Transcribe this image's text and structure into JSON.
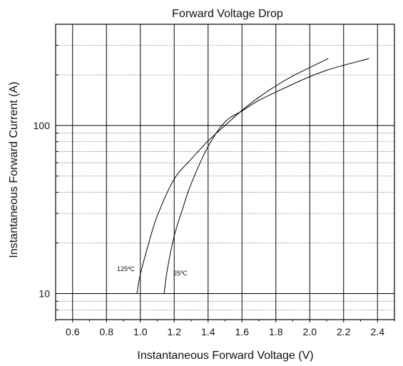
{
  "chart_data": {
    "type": "line",
    "title": "Forward Voltage Drop",
    "xlabel": "Instantaneous Forward Voltage (V)",
    "ylabel": "Instantaneous Forward Current (A)",
    "xlim": [
      0.5,
      2.5
    ],
    "ylim": [
      7,
      400
    ],
    "yscale": "log",
    "grid": true,
    "xticks": [
      0.6,
      0.8,
      1.0,
      1.2,
      1.4,
      1.6,
      1.8,
      2.0,
      2.2,
      2.4
    ],
    "xtick_labels": [
      "0.6",
      "0.8",
      "1.0",
      "1.2",
      "1.4",
      "1.6",
      "1.8",
      "2.0",
      "2.2",
      "2.4"
    ],
    "yticks": [
      10,
      100
    ],
    "ytick_labels": [
      "10",
      "100"
    ],
    "series": [
      {
        "name": "125ºC",
        "x": [
          0.98,
          1.0,
          1.05,
          1.1,
          1.2,
          1.3,
          1.4,
          1.5,
          1.6,
          1.7,
          1.8,
          1.9,
          2.0,
          2.11
        ],
        "y": [
          10,
          13,
          20,
          29,
          48,
          63,
          81,
          100,
          123,
          147,
          172,
          197,
          221,
          250
        ]
      },
      {
        "name": "25ºC",
        "x": [
          1.14,
          1.16,
          1.2,
          1.25,
          1.3,
          1.4,
          1.5,
          1.6,
          1.7,
          1.8,
          1.9,
          2.0,
          2.1,
          2.2,
          2.35
        ],
        "y": [
          10,
          14,
          22,
          32,
          45,
          75,
          105,
          122,
          141,
          158,
          176,
          195,
          213,
          228,
          250
        ]
      }
    ]
  }
}
